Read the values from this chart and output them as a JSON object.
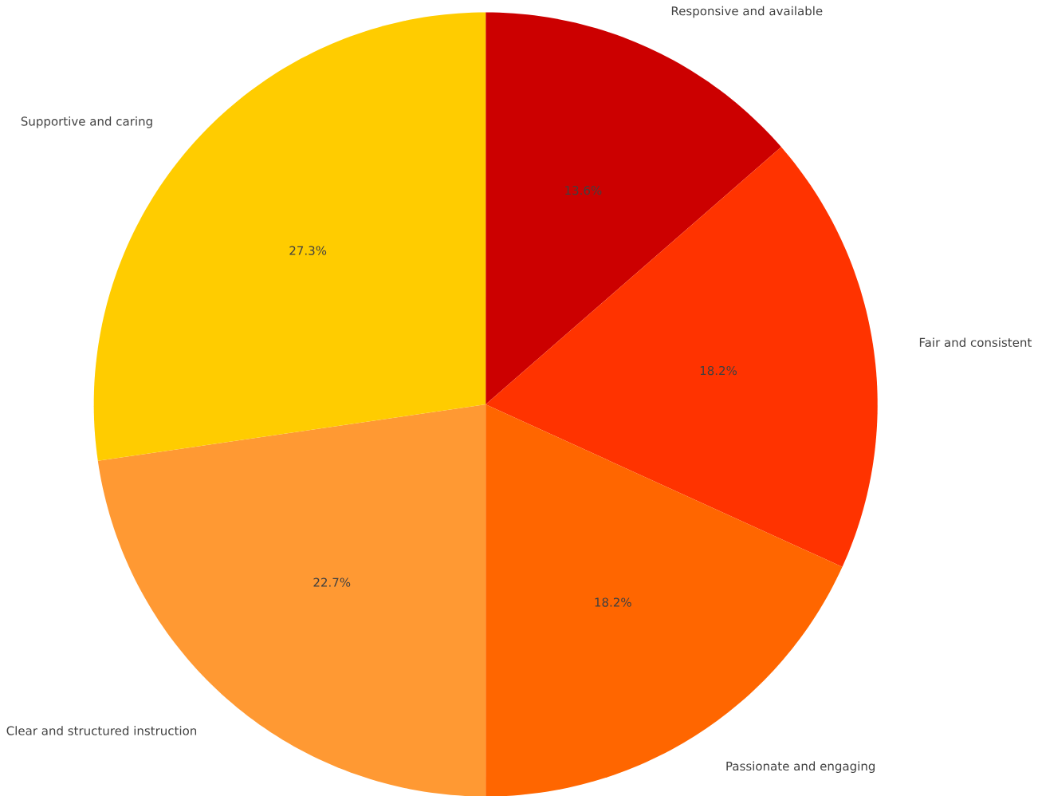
{
  "chart_data": {
    "type": "pie",
    "categories": [
      "Responsive and available",
      "Fair and consistent",
      "Passionate and engaging",
      "Clear and structured instruction",
      "Supportive and caring"
    ],
    "values": [
      13.6,
      18.2,
      18.2,
      22.7,
      27.3
    ],
    "colors": [
      "#cc0000",
      "#ff3300",
      "#ff6600",
      "#ff9933",
      "#ffcc00"
    ],
    "value_labels": [
      "13.6%",
      "18.2%",
      "18.2%",
      "22.7%",
      "27.3%"
    ]
  }
}
